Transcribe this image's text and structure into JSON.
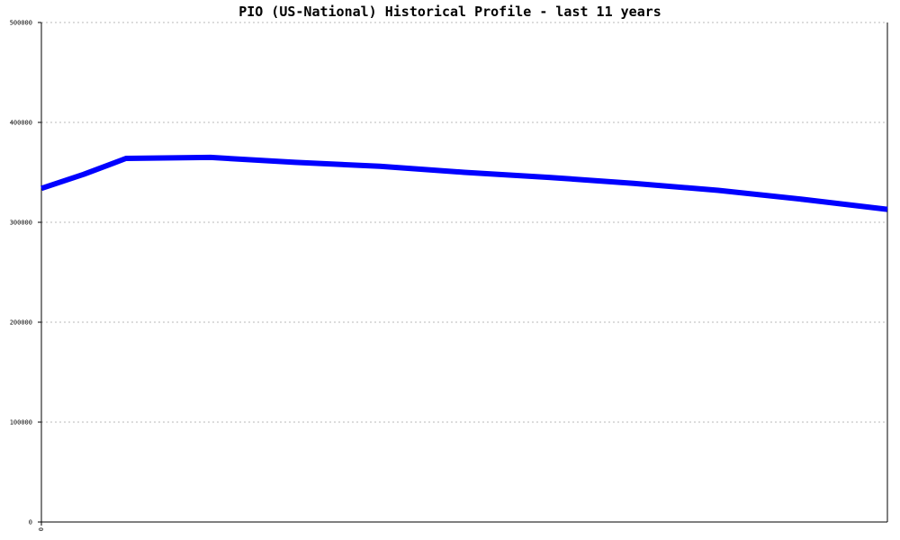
{
  "chart_data": {
    "type": "line",
    "title": "PIO (US-National) Historical Profile - last 11 years",
    "xlabel": "",
    "ylabel": "",
    "ylim": [
      0,
      500000
    ],
    "yticks": [
      0,
      100000,
      200000,
      300000,
      400000,
      500000
    ],
    "ytick_labels": [
      "0",
      "100000",
      "200000",
      "300000",
      "400000",
      "500000"
    ],
    "x_first_label": "0",
    "grid": "horizontal dashed",
    "series": [
      {
        "color": "#0000ff",
        "x": [
          0,
          0.5,
          1,
          2,
          3,
          4,
          5,
          6,
          7,
          8,
          9,
          10
        ],
        "values": [
          334000,
          348000,
          364000,
          365000,
          360000,
          356000,
          350000,
          345000,
          339000,
          332000,
          323000,
          313000
        ]
      }
    ]
  }
}
